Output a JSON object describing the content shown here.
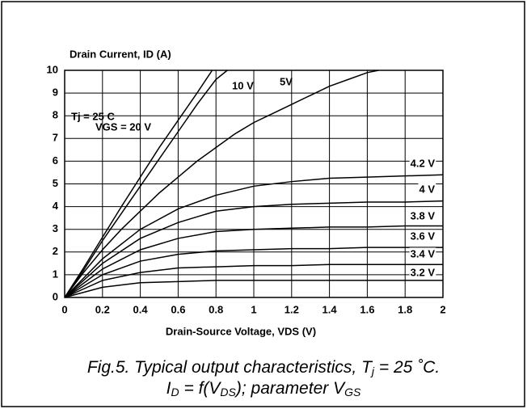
{
  "chart_data": {
    "type": "line",
    "y_label": "Drain Current, ID (A)",
    "x_label": "Drain-Source Voltage, VDS (V)",
    "annotation": "Tj = 25 C",
    "caption_line1": [
      "Fig.5.  Typical output characteristics, T",
      "j",
      " = 25 ˚C."
    ],
    "caption_line2": [
      "I",
      "D",
      " = f(V",
      "DS",
      "); parameter V",
      "GS"
    ],
    "xlim": [
      0,
      2
    ],
    "ylim": [
      0,
      10
    ],
    "xticks": [
      0,
      0.2,
      0.4,
      0.6,
      0.8,
      1,
      1.2,
      1.4,
      1.6,
      1.8,
      2
    ],
    "yticks": [
      0,
      1,
      2,
      3,
      4,
      5,
      6,
      7,
      8,
      9,
      10
    ],
    "grid": true,
    "series": [
      {
        "name": "VGS = 20 V",
        "color": "#000000",
        "x": [
          0,
          0.1,
          0.2,
          0.3,
          0.4,
          0.5,
          0.6,
          0.7,
          0.78
        ],
        "values": [
          0,
          1.3,
          2.65,
          4.0,
          5.3,
          6.6,
          7.8,
          9.0,
          10
        ]
      },
      {
        "name": "10 V",
        "color": "#000000",
        "x": [
          0,
          0.1,
          0.2,
          0.3,
          0.4,
          0.5,
          0.6,
          0.7,
          0.8,
          0.86
        ],
        "values": [
          0,
          1.2,
          2.5,
          3.7,
          4.9,
          6.1,
          7.3,
          8.5,
          9.6,
          10
        ]
      },
      {
        "name": "5V",
        "color": "#000000",
        "x": [
          0,
          0.1,
          0.2,
          0.3,
          0.4,
          0.5,
          0.6,
          0.7,
          0.8,
          0.9,
          1.0,
          1.1,
          1.2,
          1.3,
          1.4,
          1.5,
          1.6,
          1.66
        ],
        "values": [
          0,
          1.1,
          2.1,
          3.0,
          3.8,
          4.6,
          5.3,
          6.0,
          6.6,
          7.2,
          7.7,
          8.1,
          8.5,
          8.9,
          9.3,
          9.6,
          9.9,
          10
        ]
      },
      {
        "name": "4.2 V",
        "color": "#000000",
        "x": [
          0,
          0.2,
          0.4,
          0.6,
          0.8,
          1.0,
          1.2,
          1.4,
          1.6,
          1.8,
          2.0
        ],
        "values": [
          0,
          1.7,
          3.0,
          3.9,
          4.5,
          4.9,
          5.1,
          5.25,
          5.3,
          5.35,
          5.4
        ]
      },
      {
        "name": "4 V",
        "color": "#000000",
        "x": [
          0,
          0.2,
          0.4,
          0.6,
          0.8,
          1.0,
          1.2,
          1.4,
          1.6,
          1.8,
          2.0
        ],
        "values": [
          0,
          1.5,
          2.6,
          3.3,
          3.8,
          4.0,
          4.1,
          4.15,
          4.2,
          4.2,
          4.25
        ]
      },
      {
        "name": "3.8 V",
        "color": "#000000",
        "x": [
          0,
          0.2,
          0.4,
          0.6,
          0.8,
          1.0,
          1.2,
          1.4,
          1.6,
          1.8,
          2.0
        ],
        "values": [
          0,
          1.25,
          2.1,
          2.6,
          2.9,
          3.0,
          3.05,
          3.1,
          3.1,
          3.15,
          3.15
        ]
      },
      {
        "name": "3.6 V",
        "color": "#000000",
        "x": [
          0,
          0.2,
          0.4,
          0.6,
          0.8,
          1.0,
          1.2,
          1.4,
          1.6,
          1.8,
          2.0
        ],
        "values": [
          0,
          1.0,
          1.6,
          1.9,
          2.05,
          2.1,
          2.15,
          2.15,
          2.2,
          2.2,
          2.2
        ]
      },
      {
        "name": "3.4 V",
        "color": "#000000",
        "x": [
          0,
          0.2,
          0.4,
          0.6,
          0.8,
          1.0,
          1.2,
          1.4,
          1.6,
          1.8,
          2.0
        ],
        "values": [
          0,
          0.75,
          1.1,
          1.3,
          1.35,
          1.4,
          1.4,
          1.45,
          1.45,
          1.45,
          1.45
        ]
      },
      {
        "name": "3.2 V",
        "color": "#000000",
        "x": [
          0,
          0.2,
          0.4,
          0.6,
          0.8,
          1.0,
          1.2,
          1.4,
          1.6,
          1.8,
          2.0
        ],
        "values": [
          0,
          0.45,
          0.65,
          0.7,
          0.75,
          0.75,
          0.75,
          0.75,
          0.75,
          0.75,
          0.75
        ]
      }
    ]
  }
}
